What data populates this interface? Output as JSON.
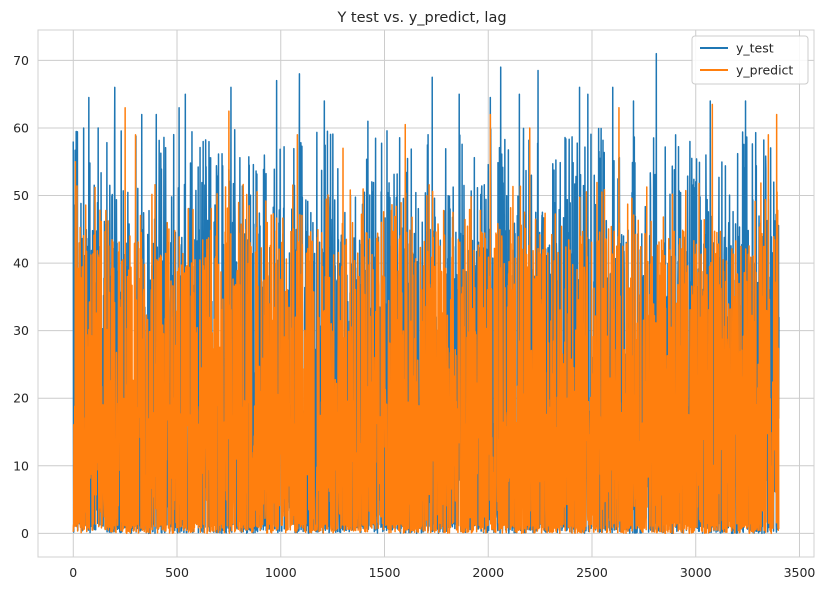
{
  "chart_data": {
    "type": "line",
    "title": "Y test vs. y_predict, lag",
    "xlabel": "",
    "ylabel": "",
    "xlim": [
      -170,
      3570
    ],
    "ylim": [
      -3.5,
      74.5
    ],
    "x_ticks": [
      0,
      500,
      1000,
      1500,
      2000,
      2500,
      3000,
      3500
    ],
    "y_ticks": [
      0,
      10,
      20,
      30,
      40,
      50,
      60,
      70
    ],
    "grid": true,
    "legend": "top-right",
    "n_points": 3402,
    "series": [
      {
        "name": "y_test",
        "color": "#1f77b4",
        "peaks": [
          [
            0,
            58
          ],
          [
            50,
            60
          ],
          [
            75,
            64.5
          ],
          [
            200,
            66
          ],
          [
            330,
            62
          ],
          [
            400,
            62
          ],
          [
            510,
            63
          ],
          [
            540,
            65
          ],
          [
            760,
            66
          ],
          [
            980,
            67
          ],
          [
            1090,
            68
          ],
          [
            1210,
            64
          ],
          [
            1420,
            61
          ],
          [
            1730,
            67.5
          ],
          [
            1860,
            65
          ],
          [
            2010,
            64.5
          ],
          [
            2060,
            69
          ],
          [
            2150,
            65
          ],
          [
            2240,
            68.5
          ],
          [
            2440,
            66
          ],
          [
            2480,
            65
          ],
          [
            2600,
            66
          ],
          [
            2700,
            64
          ],
          [
            2810,
            71
          ],
          [
            3070,
            64
          ],
          [
            3240,
            64
          ]
        ],
        "summary": "dense fluctuating series ranging roughly 0 to 71"
      },
      {
        "name": "y_predict",
        "color": "#ff7f0e",
        "peaks": [
          [
            10,
            55
          ],
          [
            250,
            63
          ],
          [
            300,
            59
          ],
          [
            750,
            62.5
          ],
          [
            1080,
            59
          ],
          [
            1300,
            57
          ],
          [
            1600,
            60.5
          ],
          [
            2010,
            62
          ],
          [
            2200,
            60
          ],
          [
            2630,
            63
          ],
          [
            3080,
            63.5
          ],
          [
            3350,
            59
          ],
          [
            3390,
            62
          ]
        ],
        "summary": "dense fluctuating series ranging roughly 0 to 64, mostly below 50"
      }
    ]
  }
}
